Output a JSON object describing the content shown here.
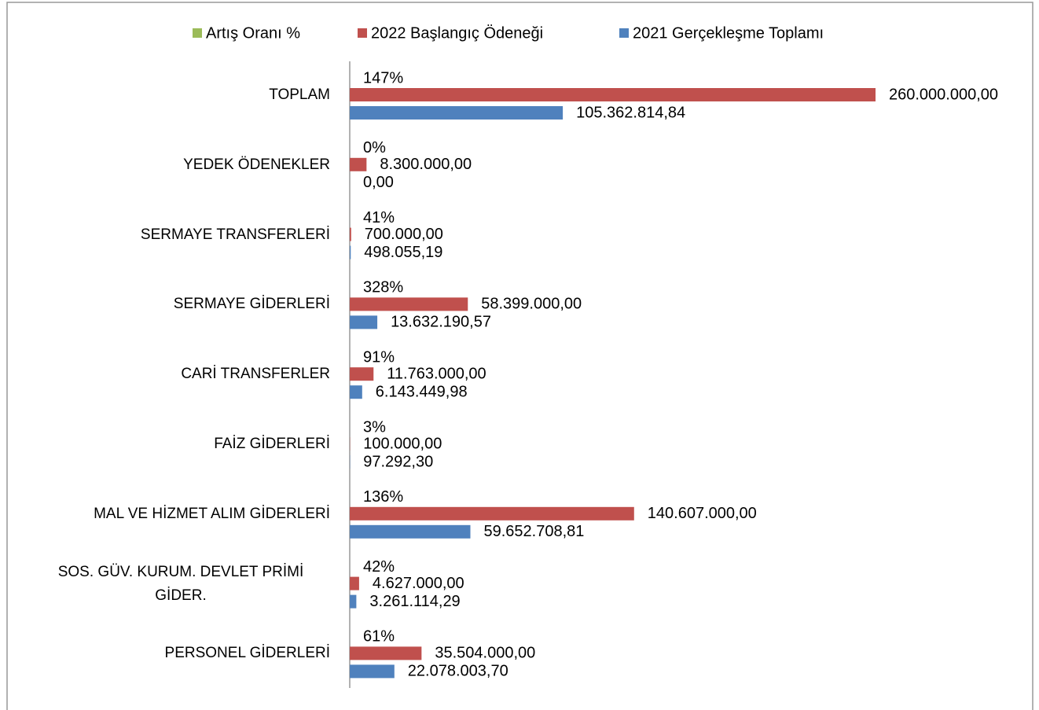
{
  "chart_data": {
    "type": "bar",
    "orientation": "horizontal",
    "categories": [
      "TOPLAM",
      "YEDEK ÖDENEKLER",
      "SERMAYE TRANSFERLERİ",
      "SERMAYE GİDERLERİ",
      "CARİ TRANSFERLER",
      "FAİZ  GİDERLERİ",
      "MAL VE HİZMET ALIM GİDERLERİ",
      "SOS. GÜV. KURUM. DEVLET PRİMİ GİDER.",
      "PERSONEL GİDERLERİ"
    ],
    "series": [
      {
        "name": "Artış Oranı %",
        "color": "#9bbb59",
        "values": [
          147,
          0,
          41,
          328,
          91,
          3,
          136,
          42,
          61
        ],
        "value_labels": [
          "147%",
          "0%",
          "41%",
          "328%",
          "91%",
          "3%",
          "136%",
          "42%",
          "61%"
        ]
      },
      {
        "name": "2022  Başlangıç Ödeneği",
        "color": "#c0504d",
        "values": [
          260000000,
          8300000,
          700000,
          58399000,
          11763000,
          100000,
          140607000,
          4627000,
          35504000
        ],
        "value_labels": [
          "260.000.000,00",
          "8.300.000,00",
          "700.000,00",
          "58.399.000,00",
          "11.763.000,00",
          "100.000,00",
          "140.607.000,00",
          "4.627.000,00",
          "35.504.000,00"
        ]
      },
      {
        "name": "2021 Gerçekleşme Toplamı",
        "color": "#4f81bd",
        "values": [
          105362814.84,
          0,
          498055.19,
          13632190.57,
          6143449.98,
          97292.3,
          59652708.81,
          3261114.29,
          22078003.7
        ],
        "value_labels": [
          "105.362.814,84",
          "0,00",
          "498.055,19",
          "13.632.190,57",
          "6.143.449,98",
          "97.292,30",
          "59.652.708,81",
          "3.261.114,29",
          "22.078.003,70"
        ]
      }
    ],
    "xlim": [
      0,
      260000000
    ],
    "legend": "top"
  }
}
